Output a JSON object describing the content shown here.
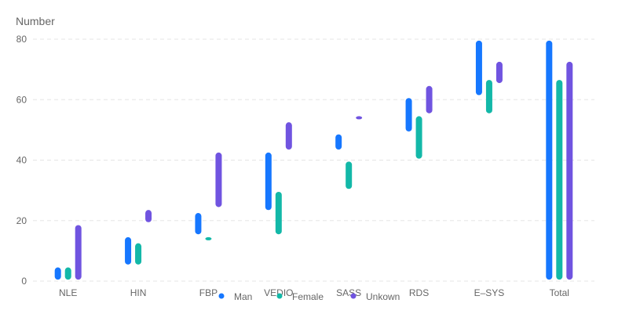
{
  "chart_data": {
    "type": "bar",
    "subtype": "range-bar",
    "ylabel": "Number",
    "ylim": [
      0,
      80
    ],
    "yticks": [
      0,
      20,
      40,
      60,
      80
    ],
    "grid": "horizontal-dashed",
    "categories": [
      "NLE",
      "HIN",
      "FBP",
      "VEDIO",
      "SASS",
      "RDS",
      "E–SYS",
      "Total"
    ],
    "series": [
      {
        "name": "Man",
        "color": "#1677FF",
        "ranges": [
          [
            1,
            4
          ],
          [
            6,
            14
          ],
          [
            16,
            22
          ],
          [
            24,
            42
          ],
          [
            44,
            48
          ],
          [
            50,
            60
          ],
          [
            62,
            79
          ],
          [
            1,
            79
          ]
        ]
      },
      {
        "name": "Female",
        "color": "#13B8A8",
        "ranges": [
          [
            1,
            4
          ],
          [
            6,
            12
          ],
          [
            14,
            14
          ],
          [
            16,
            29
          ],
          [
            31,
            39
          ],
          [
            41,
            54
          ],
          [
            56,
            66
          ],
          [
            1,
            66
          ]
        ]
      },
      {
        "name": "Unkown",
        "color": "#7054E0",
        "ranges": [
          [
            1,
            18
          ],
          [
            20,
            23
          ],
          [
            25,
            42
          ],
          [
            44,
            52
          ],
          [
            54,
            54
          ],
          [
            56,
            64
          ],
          [
            66,
            72
          ],
          [
            1,
            72
          ]
        ]
      }
    ],
    "legend": {
      "position": "bottom",
      "items": [
        "Man",
        "Female",
        "Unkown"
      ]
    }
  }
}
